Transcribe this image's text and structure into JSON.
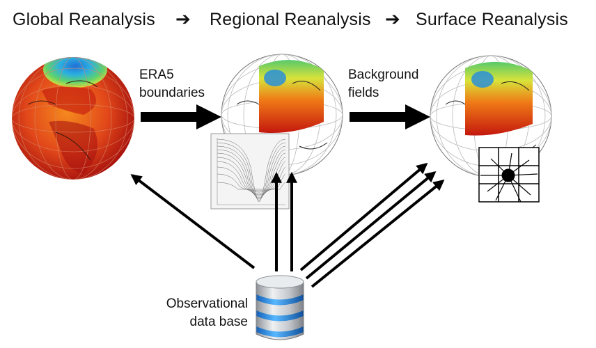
{
  "header": {
    "step1": "Global Reanalysis",
    "step2": "Regional Reanalysis",
    "step3": "Surface Reanalysis",
    "separator_icon": "arrow-right-icon"
  },
  "labels": {
    "era5_line1": "ERA5",
    "era5_line2": "boundaries",
    "background_line1": "Background",
    "background_line2": "fields",
    "obs_line1": "Observational",
    "obs_line2": "data base"
  },
  "icons": {
    "global_globe": "global-globe-icon",
    "regional_globe": "regional-globe-icon",
    "surface_globe": "surface-globe-icon",
    "vertical_levels": "vertical-levels-plot-icon",
    "grid": "surface-grid-icon",
    "database": "database-icon"
  },
  "colors": {
    "hot": "#c4120c",
    "warm": "#f06a10",
    "mild": "#f7c21a",
    "cool": "#43c96b",
    "cold": "#1f8fd8",
    "db_blue": "#2a8fe0",
    "db_silver": "#c9ccd1"
  }
}
